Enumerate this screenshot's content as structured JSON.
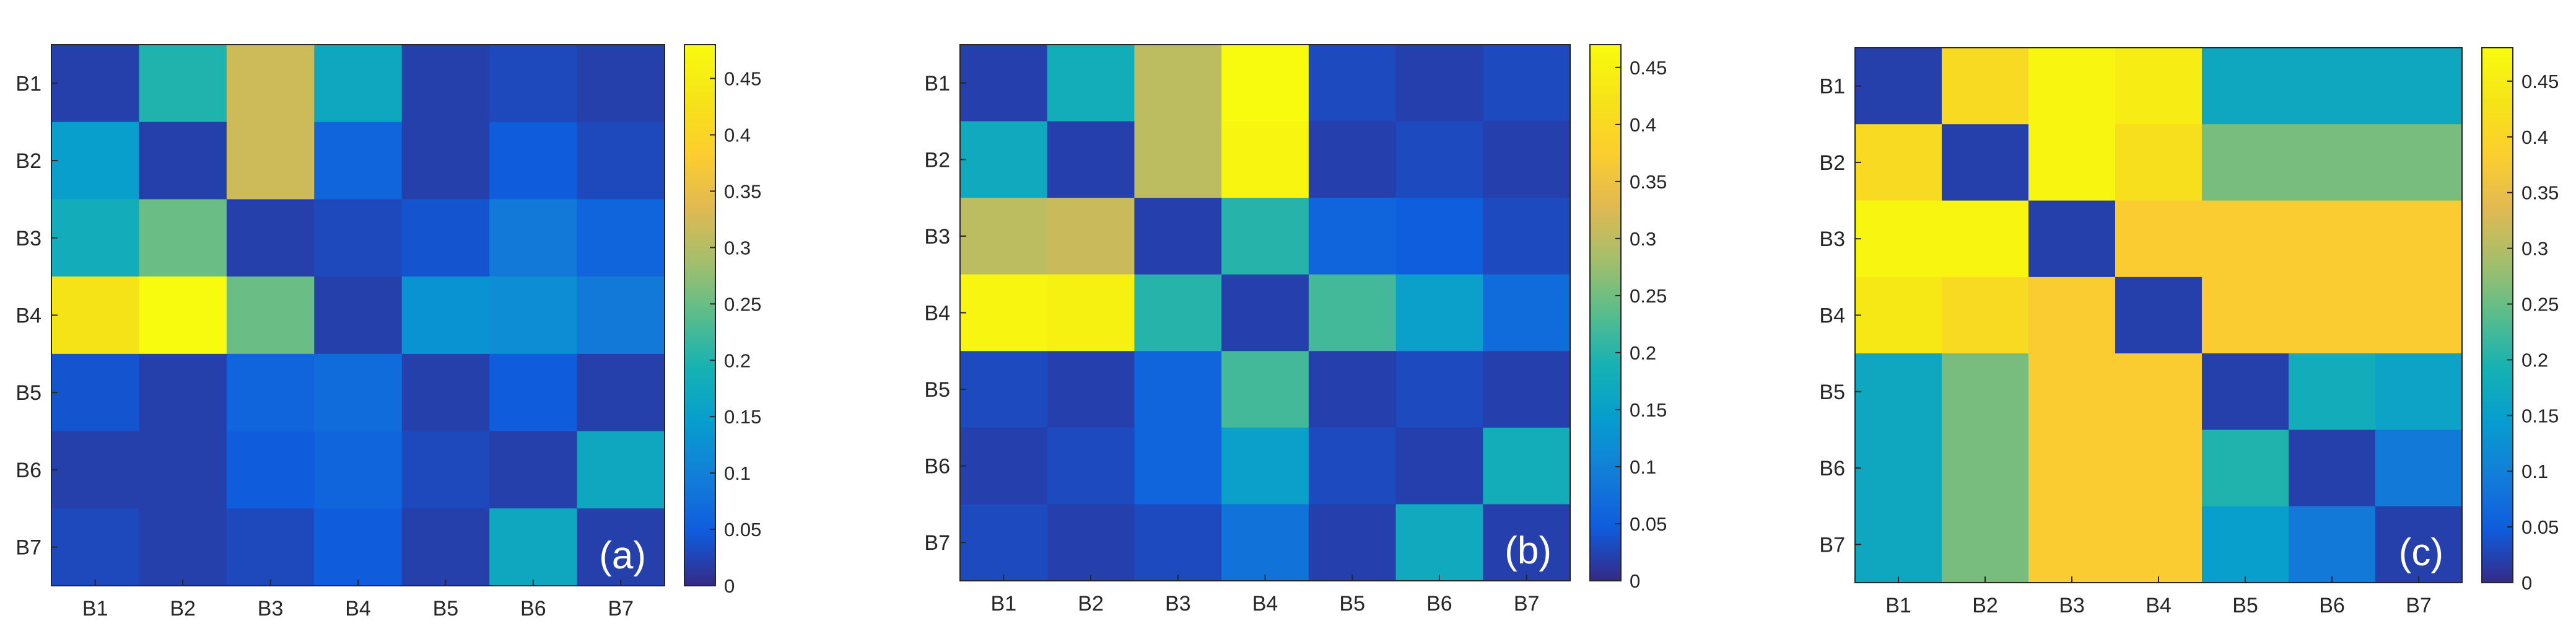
{
  "colorbar_ticks": [
    "0",
    "0.05",
    "0.1",
    "0.15",
    "0.2",
    "0.25",
    "0.3",
    "0.35",
    "0.4",
    "0.45"
  ],
  "chart_data": [
    {
      "type": "heatmap",
      "panel_label": "(a)",
      "rows": [
        "B1",
        "B2",
        "B3",
        "B4",
        "B5",
        "B6",
        "B7"
      ],
      "columns": [
        "B1",
        "B2",
        "B3",
        "B4",
        "B5",
        "B6",
        "B7"
      ],
      "clim": [
        0,
        0.48
      ],
      "colormap": "parula",
      "values": [
        [
          0.02,
          0.2,
          0.32,
          0.17,
          0.02,
          0.03,
          0.02
        ],
        [
          0.15,
          0.02,
          0.32,
          0.06,
          0.02,
          0.05,
          0.03
        ],
        [
          0.18,
          0.25,
          0.02,
          0.03,
          0.04,
          0.09,
          0.06
        ],
        [
          0.43,
          0.48,
          0.25,
          0.02,
          0.13,
          0.12,
          0.09
        ],
        [
          0.04,
          0.02,
          0.06,
          0.07,
          0.02,
          0.05,
          0.02
        ],
        [
          0.02,
          0.02,
          0.05,
          0.06,
          0.03,
          0.02,
          0.17
        ],
        [
          0.03,
          0.02,
          0.03,
          0.05,
          0.02,
          0.17,
          0.02
        ]
      ]
    },
    {
      "type": "heatmap",
      "panel_label": "(b)",
      "rows": [
        "B1",
        "B2",
        "B3",
        "B4",
        "B5",
        "B6",
        "B7"
      ],
      "columns": [
        "B1",
        "B2",
        "B3",
        "B4",
        "B5",
        "B6",
        "B7"
      ],
      "clim": [
        0,
        0.47
      ],
      "colormap": "parula",
      "values": [
        [
          0.02,
          0.18,
          0.3,
          0.47,
          0.03,
          0.02,
          0.03
        ],
        [
          0.17,
          0.02,
          0.3,
          0.46,
          0.02,
          0.03,
          0.02
        ],
        [
          0.3,
          0.31,
          0.02,
          0.2,
          0.06,
          0.05,
          0.03
        ],
        [
          0.46,
          0.45,
          0.2,
          0.02,
          0.22,
          0.15,
          0.07
        ],
        [
          0.03,
          0.02,
          0.06,
          0.22,
          0.02,
          0.03,
          0.02
        ],
        [
          0.02,
          0.03,
          0.06,
          0.15,
          0.03,
          0.02,
          0.18
        ],
        [
          0.03,
          0.02,
          0.03,
          0.08,
          0.02,
          0.17,
          0.02
        ]
      ]
    },
    {
      "type": "heatmap",
      "panel_label": "(c)",
      "rows": [
        "B1",
        "B2",
        "B3",
        "B4",
        "B5",
        "B6",
        "B7"
      ],
      "columns": [
        "B1",
        "B2",
        "B3",
        "B4",
        "B5",
        "B6",
        "B7"
      ],
      "clim": [
        0,
        0.48
      ],
      "colormap": "parula",
      "values": [
        [
          0.02,
          0.41,
          0.47,
          0.45,
          0.17,
          0.17,
          0.17
        ],
        [
          0.41,
          0.02,
          0.47,
          0.42,
          0.26,
          0.26,
          0.26
        ],
        [
          0.47,
          0.47,
          0.02,
          0.38,
          0.38,
          0.38,
          0.38
        ],
        [
          0.44,
          0.41,
          0.38,
          0.02,
          0.38,
          0.38,
          0.38
        ],
        [
          0.17,
          0.26,
          0.38,
          0.38,
          0.02,
          0.18,
          0.16
        ],
        [
          0.17,
          0.26,
          0.38,
          0.38,
          0.2,
          0.02,
          0.09
        ],
        [
          0.17,
          0.26,
          0.38,
          0.38,
          0.15,
          0.09,
          0.02
        ]
      ]
    }
  ]
}
